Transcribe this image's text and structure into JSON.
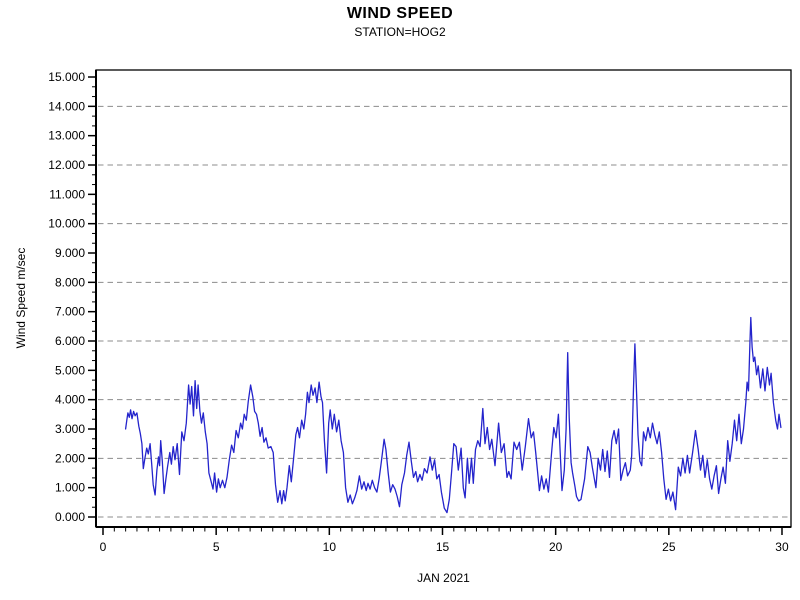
{
  "page": {
    "background": "#ffffff"
  },
  "chart_data": {
    "type": "line",
    "title": "WIND SPEED",
    "subtitle": "STATION=HOG2",
    "xlabel": "JAN 2021",
    "ylabel": "Wind Speed m/sec",
    "xlim": [
      0,
      30
    ],
    "ylim": [
      0,
      15
    ],
    "x_major_ticks": [
      0,
      5,
      10,
      15,
      20,
      25,
      30
    ],
    "x_minor_step": 0.5,
    "y_major_step": 1,
    "y_minor_per_interval": 2,
    "y_tick_labels": [
      "0.000",
      "1.000",
      "2.000",
      "3.000",
      "4.000",
      "5.000",
      "6.000",
      "7.000",
      "8.000",
      "9.000",
      "10.000",
      "11.000",
      "12.000",
      "13.000",
      "14.000",
      "15.000"
    ],
    "gridline_values": [
      0,
      2,
      4,
      6,
      8,
      10,
      12,
      14
    ],
    "grid_style": "dashed",
    "legend": "none",
    "colors": {
      "line": "#2424cc",
      "grid": "#8c8c8c",
      "axis": "#000000",
      "text": "#000000"
    },
    "series": [
      {
        "name": "wind speed (m/sec)",
        "points": [
          [
            1.0,
            3.0
          ],
          [
            1.05,
            3.3
          ],
          [
            1.1,
            3.55
          ],
          [
            1.16,
            3.4
          ],
          [
            1.22,
            3.65
          ],
          [
            1.28,
            3.35
          ],
          [
            1.35,
            3.6
          ],
          [
            1.42,
            3.45
          ],
          [
            1.5,
            3.55
          ],
          [
            1.58,
            3.1
          ],
          [
            1.65,
            2.85
          ],
          [
            1.72,
            2.5
          ],
          [
            1.78,
            1.65
          ],
          [
            1.85,
            2.0
          ],
          [
            1.93,
            2.35
          ],
          [
            2.0,
            2.15
          ],
          [
            2.08,
            2.5
          ],
          [
            2.15,
            1.8
          ],
          [
            2.22,
            1.1
          ],
          [
            2.3,
            0.75
          ],
          [
            2.38,
            1.6
          ],
          [
            2.45,
            2.05
          ],
          [
            2.5,
            1.75
          ],
          [
            2.55,
            2.6
          ],
          [
            2.62,
            1.9
          ],
          [
            2.7,
            0.8
          ],
          [
            2.78,
            1.3
          ],
          [
            2.85,
            1.7
          ],
          [
            2.95,
            2.2
          ],
          [
            3.02,
            1.8
          ],
          [
            3.1,
            2.4
          ],
          [
            3.18,
            1.95
          ],
          [
            3.28,
            2.5
          ],
          [
            3.38,
            1.45
          ],
          [
            3.48,
            2.9
          ],
          [
            3.58,
            2.6
          ],
          [
            3.68,
            3.2
          ],
          [
            3.78,
            4.5
          ],
          [
            3.85,
            3.85
          ],
          [
            3.92,
            4.45
          ],
          [
            4.0,
            3.45
          ],
          [
            4.07,
            4.65
          ],
          [
            4.14,
            3.7
          ],
          [
            4.2,
            4.5
          ],
          [
            4.28,
            3.6
          ],
          [
            4.35,
            3.2
          ],
          [
            4.43,
            3.55
          ],
          [
            4.52,
            2.9
          ],
          [
            4.6,
            2.5
          ],
          [
            4.68,
            1.5
          ],
          [
            4.78,
            1.2
          ],
          [
            4.86,
            0.95
          ],
          [
            4.93,
            1.5
          ],
          [
            5.02,
            0.85
          ],
          [
            5.1,
            1.3
          ],
          [
            5.18,
            1.0
          ],
          [
            5.28,
            1.25
          ],
          [
            5.38,
            1.0
          ],
          [
            5.48,
            1.35
          ],
          [
            5.58,
            1.95
          ],
          [
            5.68,
            2.45
          ],
          [
            5.78,
            2.2
          ],
          [
            5.88,
            2.95
          ],
          [
            5.98,
            2.7
          ],
          [
            6.08,
            3.2
          ],
          [
            6.16,
            3.0
          ],
          [
            6.24,
            3.5
          ],
          [
            6.33,
            3.3
          ],
          [
            6.42,
            3.95
          ],
          [
            6.52,
            4.5
          ],
          [
            6.62,
            4.1
          ],
          [
            6.7,
            3.6
          ],
          [
            6.78,
            3.5
          ],
          [
            6.86,
            3.2
          ],
          [
            6.94,
            2.75
          ],
          [
            7.03,
            3.05
          ],
          [
            7.11,
            2.55
          ],
          [
            7.2,
            2.7
          ],
          [
            7.3,
            2.35
          ],
          [
            7.42,
            2.4
          ],
          [
            7.52,
            2.2
          ],
          [
            7.62,
            1.1
          ],
          [
            7.72,
            0.5
          ],
          [
            7.82,
            0.9
          ],
          [
            7.9,
            0.45
          ],
          [
            7.98,
            0.9
          ],
          [
            8.05,
            0.55
          ],
          [
            8.13,
            1.0
          ],
          [
            8.23,
            1.75
          ],
          [
            8.32,
            1.2
          ],
          [
            8.42,
            2.0
          ],
          [
            8.52,
            2.8
          ],
          [
            8.6,
            3.05
          ],
          [
            8.68,
            2.7
          ],
          [
            8.78,
            3.3
          ],
          [
            8.87,
            3.0
          ],
          [
            8.95,
            3.5
          ],
          [
            9.03,
            4.25
          ],
          [
            9.1,
            3.9
          ],
          [
            9.2,
            4.5
          ],
          [
            9.28,
            4.15
          ],
          [
            9.37,
            4.4
          ],
          [
            9.45,
            3.9
          ],
          [
            9.55,
            4.6
          ],
          [
            9.63,
            4.1
          ],
          [
            9.7,
            3.9
          ],
          [
            9.78,
            2.6
          ],
          [
            9.88,
            1.5
          ],
          [
            9.97,
            3.2
          ],
          [
            10.04,
            3.65
          ],
          [
            10.13,
            3.0
          ],
          [
            10.22,
            3.5
          ],
          [
            10.32,
            2.9
          ],
          [
            10.42,
            3.3
          ],
          [
            10.52,
            2.6
          ],
          [
            10.62,
            2.2
          ],
          [
            10.72,
            1.0
          ],
          [
            10.82,
            0.5
          ],
          [
            10.92,
            0.75
          ],
          [
            11.02,
            0.45
          ],
          [
            11.12,
            0.65
          ],
          [
            11.22,
            0.9
          ],
          [
            11.33,
            1.4
          ],
          [
            11.43,
            0.95
          ],
          [
            11.53,
            1.2
          ],
          [
            11.63,
            0.9
          ],
          [
            11.71,
            1.15
          ],
          [
            11.8,
            0.95
          ],
          [
            11.9,
            1.25
          ],
          [
            12.0,
            1.0
          ],
          [
            12.1,
            0.85
          ],
          [
            12.2,
            1.3
          ],
          [
            12.3,
            1.9
          ],
          [
            12.42,
            2.65
          ],
          [
            12.5,
            2.3
          ],
          [
            12.6,
            1.5
          ],
          [
            12.7,
            0.85
          ],
          [
            12.8,
            1.1
          ],
          [
            12.9,
            0.95
          ],
          [
            13.0,
            0.7
          ],
          [
            13.1,
            0.35
          ],
          [
            13.2,
            1.1
          ],
          [
            13.32,
            1.5
          ],
          [
            13.42,
            2.1
          ],
          [
            13.52,
            2.55
          ],
          [
            13.62,
            1.9
          ],
          [
            13.72,
            1.35
          ],
          [
            13.82,
            1.55
          ],
          [
            13.9,
            1.2
          ],
          [
            14.0,
            1.45
          ],
          [
            14.1,
            1.25
          ],
          [
            14.2,
            1.65
          ],
          [
            14.32,
            1.5
          ],
          [
            14.45,
            2.05
          ],
          [
            14.55,
            1.6
          ],
          [
            14.65,
            1.95
          ],
          [
            14.75,
            1.3
          ],
          [
            14.85,
            1.45
          ],
          [
            14.95,
            0.85
          ],
          [
            15.08,
            0.3
          ],
          [
            15.2,
            0.15
          ],
          [
            15.3,
            0.6
          ],
          [
            15.4,
            1.5
          ],
          [
            15.5,
            2.5
          ],
          [
            15.6,
            2.4
          ],
          [
            15.7,
            1.6
          ],
          [
            15.82,
            2.35
          ],
          [
            15.92,
            1.0
          ],
          [
            16.0,
            0.65
          ],
          [
            16.1,
            2.0
          ],
          [
            16.18,
            1.15
          ],
          [
            16.28,
            2.0
          ],
          [
            16.36,
            1.15
          ],
          [
            16.46,
            2.3
          ],
          [
            16.56,
            2.6
          ],
          [
            16.66,
            2.4
          ],
          [
            16.78,
            3.7
          ],
          [
            16.88,
            2.5
          ],
          [
            16.98,
            3.05
          ],
          [
            17.08,
            2.3
          ],
          [
            17.18,
            2.65
          ],
          [
            17.32,
            1.75
          ],
          [
            17.48,
            3.2
          ],
          [
            17.6,
            2.2
          ],
          [
            17.72,
            2.5
          ],
          [
            17.85,
            1.35
          ],
          [
            17.93,
            1.55
          ],
          [
            18.03,
            1.3
          ],
          [
            18.16,
            2.55
          ],
          [
            18.28,
            2.3
          ],
          [
            18.4,
            2.55
          ],
          [
            18.52,
            1.6
          ],
          [
            18.66,
            2.4
          ],
          [
            18.8,
            3.35
          ],
          [
            18.92,
            2.7
          ],
          [
            19.02,
            2.9
          ],
          [
            19.12,
            2.2
          ],
          [
            19.28,
            0.9
          ],
          [
            19.38,
            1.4
          ],
          [
            19.48,
            0.95
          ],
          [
            19.58,
            1.3
          ],
          [
            19.68,
            0.85
          ],
          [
            19.82,
            2.2
          ],
          [
            19.92,
            3.05
          ],
          [
            20.02,
            2.7
          ],
          [
            20.12,
            3.5
          ],
          [
            20.28,
            0.9
          ],
          [
            20.38,
            1.6
          ],
          [
            20.46,
            3.0
          ],
          [
            20.53,
            5.6
          ],
          [
            20.6,
            3.4
          ],
          [
            20.68,
            1.85
          ],
          [
            20.75,
            1.5
          ],
          [
            20.85,
            1.05
          ],
          [
            20.92,
            0.7
          ],
          [
            21.02,
            0.55
          ],
          [
            21.12,
            0.6
          ],
          [
            21.28,
            1.3
          ],
          [
            21.42,
            2.4
          ],
          [
            21.52,
            2.2
          ],
          [
            21.62,
            1.7
          ],
          [
            21.78,
            1.0
          ],
          [
            21.88,
            2.0
          ],
          [
            21.98,
            1.6
          ],
          [
            22.08,
            2.3
          ],
          [
            22.18,
            1.55
          ],
          [
            22.28,
            2.25
          ],
          [
            22.38,
            1.35
          ],
          [
            22.48,
            2.6
          ],
          [
            22.58,
            2.95
          ],
          [
            22.68,
            2.5
          ],
          [
            22.78,
            3.0
          ],
          [
            22.88,
            1.25
          ],
          [
            22.98,
            1.6
          ],
          [
            23.08,
            1.85
          ],
          [
            23.18,
            1.4
          ],
          [
            23.3,
            1.6
          ],
          [
            23.36,
            2.1
          ],
          [
            23.44,
            4.4
          ],
          [
            23.5,
            5.9
          ],
          [
            23.56,
            4.6
          ],
          [
            23.64,
            2.8
          ],
          [
            23.72,
            1.9
          ],
          [
            23.8,
            1.75
          ],
          [
            23.88,
            2.9
          ],
          [
            23.98,
            2.6
          ],
          [
            24.08,
            3.05
          ],
          [
            24.18,
            2.7
          ],
          [
            24.28,
            3.2
          ],
          [
            24.38,
            2.8
          ],
          [
            24.48,
            2.5
          ],
          [
            24.58,
            2.9
          ],
          [
            24.68,
            2.2
          ],
          [
            24.78,
            1.3
          ],
          [
            24.88,
            0.6
          ],
          [
            24.98,
            0.95
          ],
          [
            25.08,
            0.55
          ],
          [
            25.18,
            0.85
          ],
          [
            25.3,
            0.25
          ],
          [
            25.42,
            1.7
          ],
          [
            25.52,
            1.4
          ],
          [
            25.62,
            2.0
          ],
          [
            25.72,
            1.5
          ],
          [
            25.82,
            2.1
          ],
          [
            25.92,
            1.5
          ],
          [
            26.05,
            2.2
          ],
          [
            26.18,
            2.95
          ],
          [
            26.3,
            2.3
          ],
          [
            26.4,
            1.6
          ],
          [
            26.5,
            2.1
          ],
          [
            26.6,
            1.35
          ],
          [
            26.7,
            1.95
          ],
          [
            26.8,
            1.3
          ],
          [
            26.9,
            0.95
          ],
          [
            27.0,
            1.4
          ],
          [
            27.1,
            1.75
          ],
          [
            27.2,
            0.8
          ],
          [
            27.3,
            1.3
          ],
          [
            27.4,
            1.7
          ],
          [
            27.5,
            1.15
          ],
          [
            27.6,
            2.6
          ],
          [
            27.7,
            1.9
          ],
          [
            27.8,
            2.5
          ],
          [
            27.9,
            3.3
          ],
          [
            28.0,
            2.6
          ],
          [
            28.1,
            3.5
          ],
          [
            28.2,
            2.5
          ],
          [
            28.3,
            3.0
          ],
          [
            28.4,
            3.9
          ],
          [
            28.46,
            4.6
          ],
          [
            28.52,
            4.3
          ],
          [
            28.58,
            5.9
          ],
          [
            28.62,
            6.8
          ],
          [
            28.68,
            5.8
          ],
          [
            28.74,
            5.3
          ],
          [
            28.8,
            5.45
          ],
          [
            28.88,
            4.85
          ],
          [
            28.95,
            5.15
          ],
          [
            29.05,
            4.4
          ],
          [
            29.15,
            5.05
          ],
          [
            29.25,
            4.3
          ],
          [
            29.35,
            5.1
          ],
          [
            29.45,
            4.5
          ],
          [
            29.52,
            4.9
          ],
          [
            29.62,
            3.9
          ],
          [
            29.72,
            3.3
          ],
          [
            29.8,
            3.0
          ],
          [
            29.87,
            3.5
          ],
          [
            29.95,
            3.05
          ]
        ]
      }
    ]
  }
}
